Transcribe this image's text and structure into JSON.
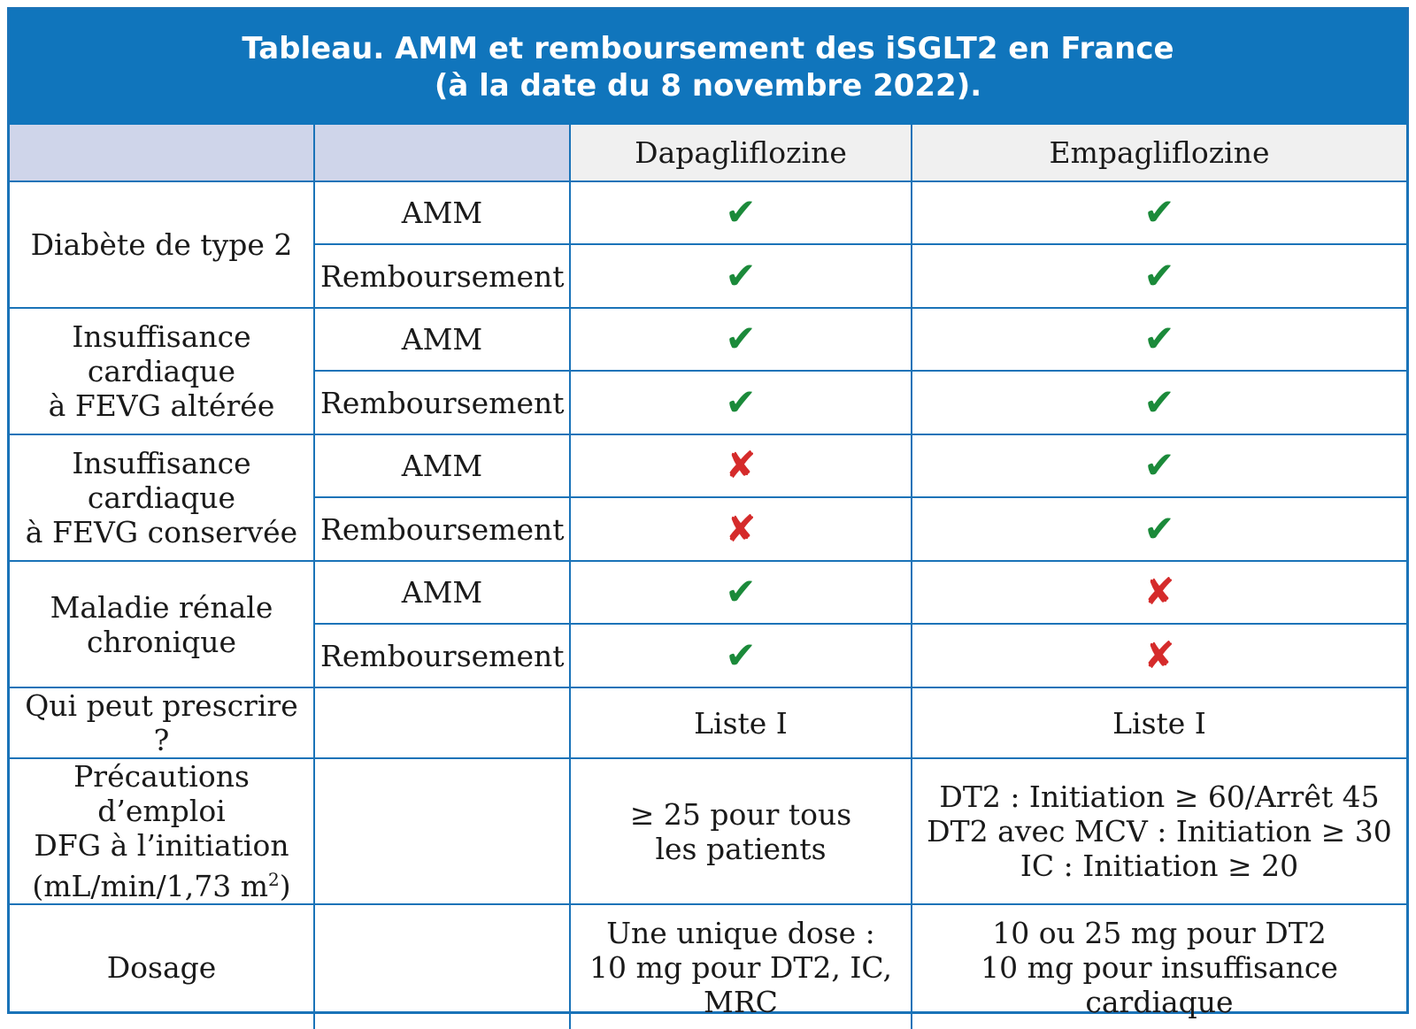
{
  "title": {
    "line1": "Tableau. AMM et remboursement des iSGLT2 en France",
    "line2": "(à la date du 8 novembre 2022)."
  },
  "columns": {
    "drug1": "Dapagliflozine",
    "drug2": "Empagliflozine"
  },
  "labels": {
    "amm": "AMM",
    "remb": "Remboursement"
  },
  "icons": {
    "yes": "✔",
    "no": "✘",
    "yes_color": "#1b8a3a",
    "no_color": "#d52b2b"
  },
  "groups": {
    "dt2": {
      "label": "Diabète de type 2",
      "amm": [
        "yes",
        "yes"
      ],
      "remb": [
        "yes",
        "yes"
      ]
    },
    "ic_alt": {
      "line1": "Insuffisance",
      "line2": "cardiaque",
      "line3": "à FEVG altérée",
      "amm": [
        "yes",
        "yes"
      ],
      "remb": [
        "yes",
        "yes"
      ]
    },
    "ic_cons": {
      "line1": "Insuffisance",
      "line2": "cardiaque",
      "line3": "à FEVG conservée",
      "amm": [
        "no",
        "yes"
      ],
      "remb": [
        "no",
        "yes"
      ]
    },
    "mrc": {
      "line1": "Maladie rénale",
      "line2": "chronique",
      "amm": [
        "yes",
        "no"
      ],
      "remb": [
        "yes",
        "no"
      ]
    }
  },
  "prescrire": {
    "label": "Qui peut prescrire ?",
    "drug1": "Liste I",
    "drug2": "Liste I"
  },
  "precautions": {
    "line1": "Précautions d’emploi",
    "line2": "DFG à l’initiation",
    "line3": "(mL/min/1,73 m",
    "sup": "2",
    "line3_end": ")",
    "drug1_line1": "≥ 25 pour tous",
    "drug1_line2": "les patients",
    "drug2_line1": "DT2 : Initiation ≥ 60/Arrêt 45",
    "drug2_line2": "DT2 avec MCV : Initiation ≥ 30",
    "drug2_line3": "IC : Initiation ≥ 20"
  },
  "dosage": {
    "label": "Dosage",
    "drug1_line1": "Une unique dose :",
    "drug1_line2": "10 mg pour DT2, IC,",
    "drug1_line3": "MRC",
    "drug2_line1": "10 ou 25 mg pour DT2",
    "drug2_line2": "10 mg pour insuffisance",
    "drug2_line3": "cardiaque"
  }
}
